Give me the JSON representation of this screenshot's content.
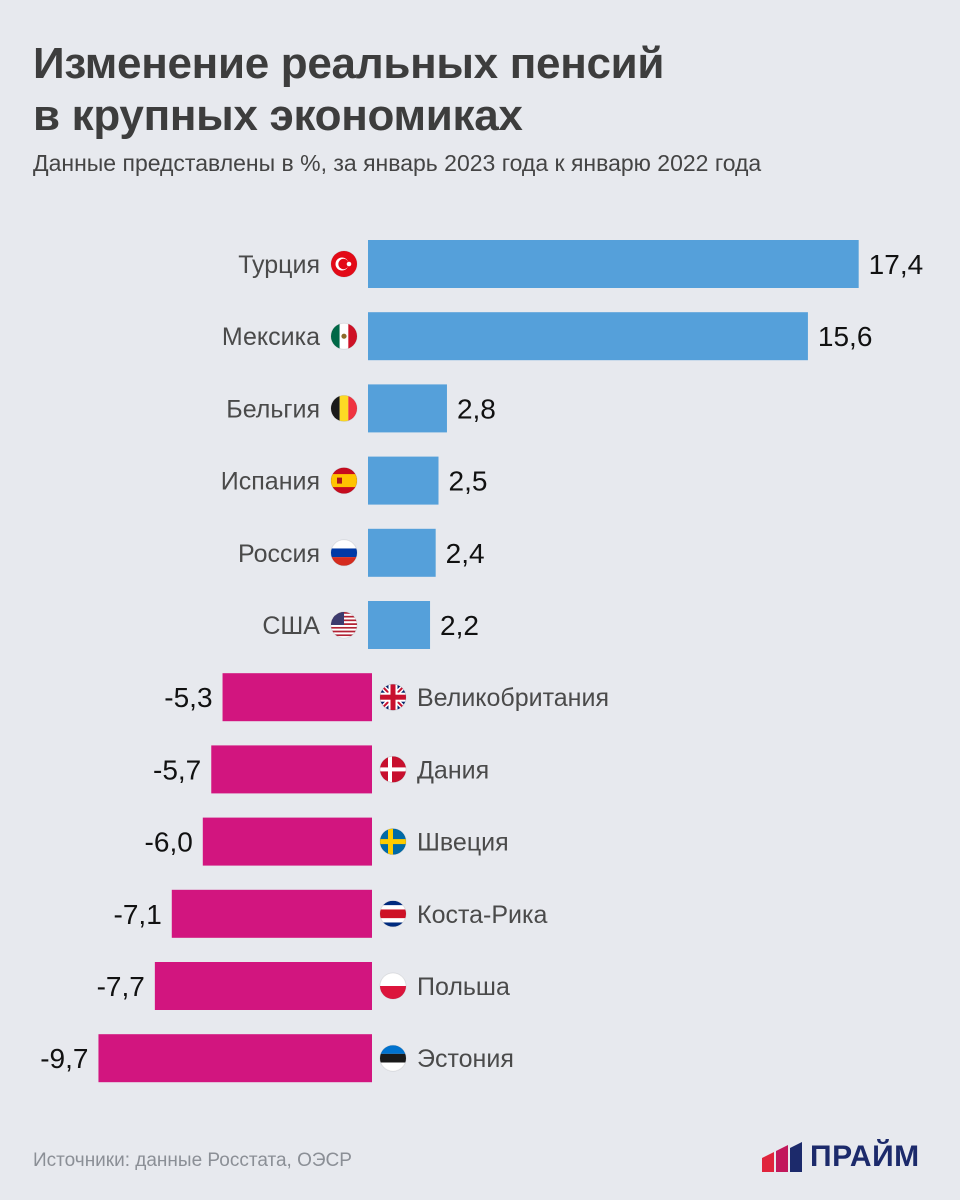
{
  "header": {
    "title_line1": "Изменение реальных пенсий",
    "title_line2": "в крупных экономиках",
    "subtitle": "Данные представлены в %, за январь 2023 года к январю 2022 года"
  },
  "footer": {
    "source": "Источники: данные Росстата, ОЭСР",
    "logo_text": "ПРАЙМ"
  },
  "colors": {
    "positive": "#55a0da",
    "negative": "#d2157f",
    "logo_blue": "#1c2a6b",
    "logo_red": "#e0243c",
    "logo_pink": "#c2185b"
  },
  "chart_data": {
    "type": "bar",
    "orientation": "horizontal",
    "title": "Изменение реальных пенсий в крупных экономиках",
    "subtitle": "Данные представлены в %, за январь 2023 года к январю 2022 года",
    "categories": [
      "Турция",
      "Мексика",
      "Бельгия",
      "Испания",
      "Россия",
      "США",
      "Великобритания",
      "Дания",
      "Швеция",
      "Коста-Рика",
      "Польша",
      "Эстония"
    ],
    "values": [
      17.4,
      15.6,
      2.8,
      2.5,
      2.4,
      2.2,
      -5.3,
      -5.7,
      -6.0,
      -7.1,
      -7.7,
      -9.7
    ],
    "value_labels": [
      "17,4",
      "15,6",
      "2,8",
      "2,5",
      "2,4",
      "2,2",
      "-5,3",
      "-5,7",
      "-6,0",
      "-7,1",
      "-7,7",
      "-9,7"
    ],
    "flags": [
      "turkey-flag-icon",
      "mexico-flag-icon",
      "belgium-flag-icon",
      "spain-flag-icon",
      "russia-flag-icon",
      "usa-flag-icon",
      "uk-flag-icon",
      "denmark-flag-icon",
      "sweden-flag-icon",
      "costa-rica-flag-icon",
      "poland-flag-icon",
      "estonia-flag-icon"
    ],
    "xlim": [
      -10,
      18
    ],
    "grid": false,
    "legend": "none"
  }
}
